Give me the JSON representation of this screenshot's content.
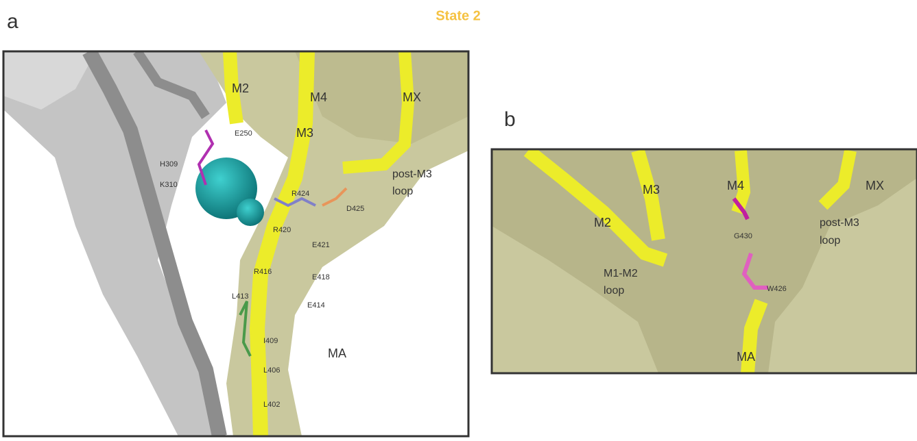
{
  "figure_title": "State 2",
  "panel_a": {
    "label": "a",
    "labels": [
      "M2",
      "M4",
      "MX",
      "M3",
      "E250",
      "H309",
      "K310",
      "R424",
      "post-M3",
      "loop",
      "D425",
      "R420",
      "E421",
      "R416",
      "E418",
      "L413",
      "E414",
      "I409",
      "MA",
      "L406",
      "L402"
    ]
  },
  "panel_b": {
    "label": "b",
    "labels": [
      "M4",
      "MX",
      "M3",
      "M2",
      "post-M3",
      "loop",
      "G430",
      "M1-M2",
      "loop",
      "W426",
      "MA"
    ]
  }
}
